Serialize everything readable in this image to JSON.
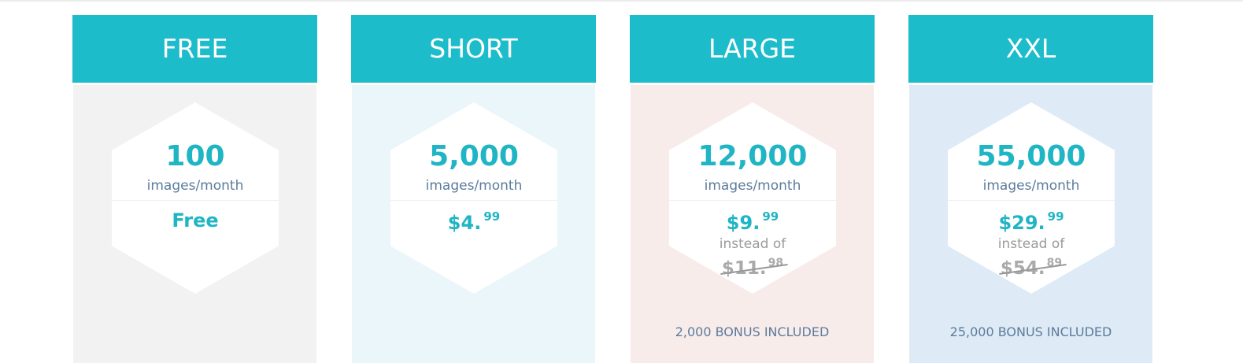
{
  "accent": "#1dbccb",
  "plans": [
    {
      "name": "FREE",
      "quantity": "100",
      "unit": "images/month",
      "price_main": "Free",
      "price_cents": "",
      "instead_label": "",
      "old_main": "",
      "old_cents": "",
      "bonus": "",
      "bg": "#f2f2f2"
    },
    {
      "name": "SHORT",
      "quantity": "5,000",
      "unit": "images/month",
      "price_main": "$4.",
      "price_cents": "99",
      "instead_label": "",
      "old_main": "",
      "old_cents": "",
      "bonus": "",
      "bg": "#eaf6f9"
    },
    {
      "name": "LARGE",
      "quantity": "12,000",
      "unit": "images/month",
      "price_main": "$9.",
      "price_cents": "99",
      "instead_label": "instead of",
      "old_main": "$11.",
      "old_cents": "98",
      "bonus": "2,000 BONUS INCLUDED",
      "bg": "#f8eceb"
    },
    {
      "name": "XXL",
      "quantity": "55,000",
      "unit": "images/month",
      "price_main": "$29.",
      "price_cents": "99",
      "instead_label": "instead of",
      "old_main": "$54.",
      "old_cents": "89",
      "bonus": "25,000 BONUS INCLUDED",
      "bg": "#deebf6"
    }
  ]
}
